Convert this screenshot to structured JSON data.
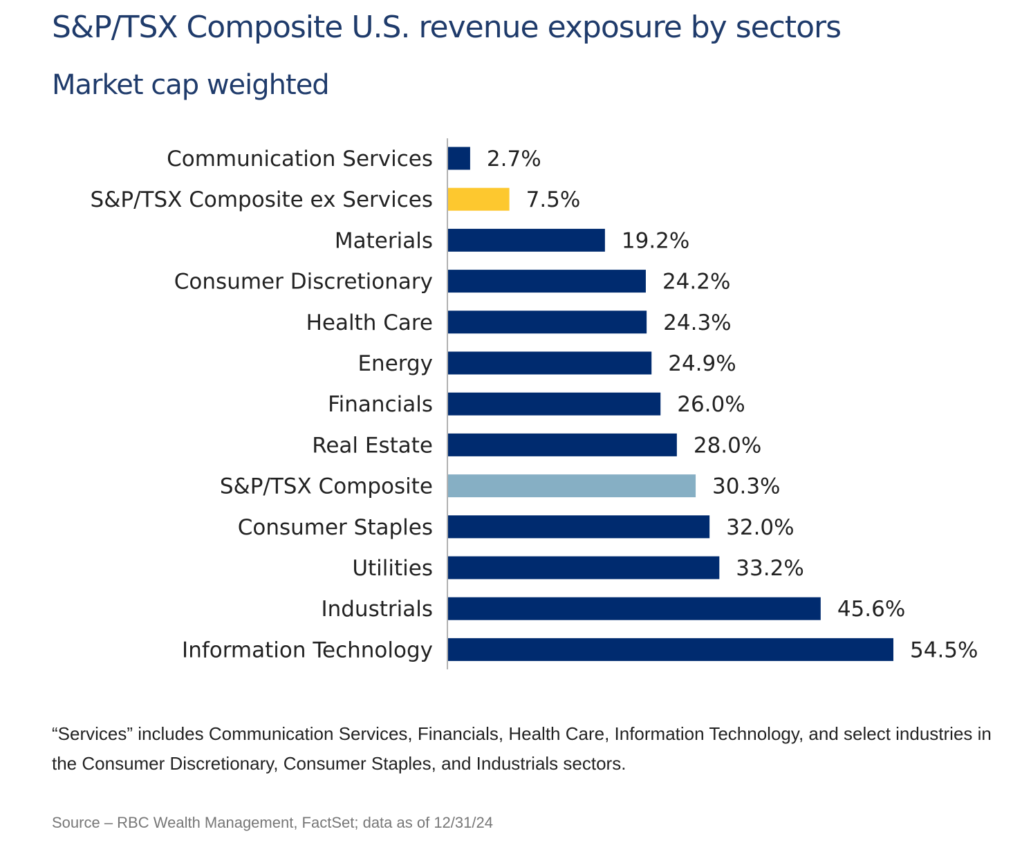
{
  "chart_data": {
    "type": "bar",
    "orientation": "horizontal",
    "title": "S&P/TSX Composite U.S. revenue exposure by sectors",
    "subtitle": "Market cap weighted",
    "categories": [
      "Communication Services",
      "S&P/TSX Composite ex Services",
      "Materials",
      "Consumer Discretionary",
      "Health Care",
      "Energy",
      "Financials",
      "Real Estate",
      "S&P/TSX Composite",
      "Consumer Staples",
      "Utilities",
      "Industrials",
      "Information Technology"
    ],
    "values": [
      2.7,
      7.5,
      19.2,
      24.2,
      24.3,
      24.9,
      26.0,
      28.0,
      30.3,
      32.0,
      33.2,
      45.6,
      54.5
    ],
    "data_labels": [
      "2.7%",
      "7.5%",
      "19.2%",
      "24.2%",
      "24.3%",
      "24.9%",
      "26.0%",
      "28.0%",
      "30.3%",
      "32.0%",
      "33.2%",
      "45.6%",
      "54.5%"
    ],
    "bar_colors": [
      "#002b6f",
      "#fdc82f",
      "#002b6f",
      "#002b6f",
      "#002b6f",
      "#002b6f",
      "#002b6f",
      "#002b6f",
      "#86afc4",
      "#002b6f",
      "#002b6f",
      "#002b6f",
      "#002b6f"
    ],
    "unit": "%",
    "xlim": [
      0,
      55
    ],
    "grid": false,
    "legend": "none"
  },
  "footnote": "“Services” includes Communication Services, Financials, Health Care, Information Technology, and select industries in the Consumer Discretionary, Consumer Staples, and Industrials sectors.",
  "source": "Source – RBC Wealth Management, FactSet; data as of 12/31/24"
}
